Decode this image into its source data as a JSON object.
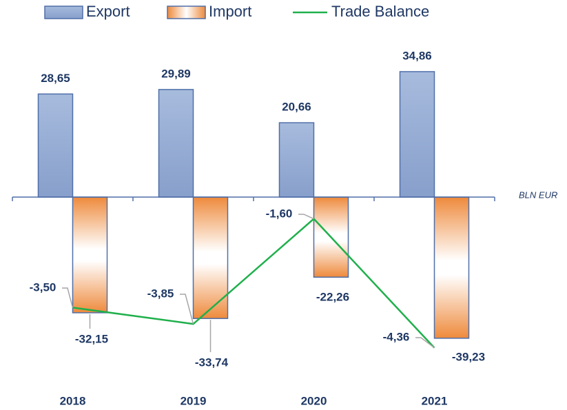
{
  "chart_data": {
    "type": "bar",
    "categories": [
      "2018",
      "2019",
      "2020",
      "2021"
    ],
    "series": [
      {
        "name": "Export",
        "color": "#95acd4",
        "values": [
          28.65,
          29.89,
          20.66,
          34.86
        ],
        "value_labels": [
          "28,65",
          "29,89",
          "20,66",
          "34,86"
        ]
      },
      {
        "name": "Import",
        "color": "#ee8a3c",
        "values": [
          -32.15,
          -33.74,
          -22.26,
          -39.23
        ],
        "value_labels": [
          "-32,15",
          "-33,74",
          "-22,26",
          "-39,23"
        ]
      },
      {
        "name": "Trade Balance",
        "type": "line",
        "axis": "y2",
        "color": "#1fb04b",
        "values": [
          -3.5,
          -3.85,
          -1.6,
          -4.36
        ],
        "value_labels": [
          "-3,50",
          "-3,85",
          "-1,60",
          "-4,36"
        ]
      }
    ],
    "y_label": "BLN EUR",
    "ylim": [
      -45,
      45
    ],
    "y2lim": [
      -4.6,
      2.33
    ]
  }
}
